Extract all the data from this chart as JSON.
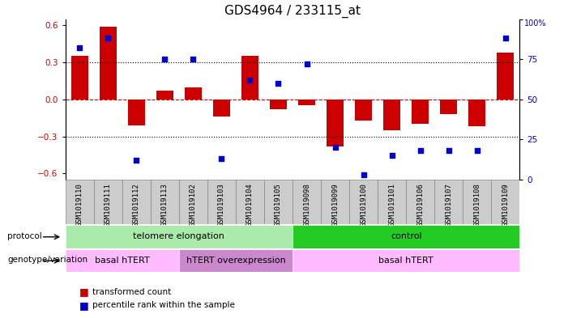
{
  "title": "GDS4964 / 233115_at",
  "samples": [
    "GSM1019110",
    "GSM1019111",
    "GSM1019112",
    "GSM1019113",
    "GSM1019102",
    "GSM1019103",
    "GSM1019104",
    "GSM1019105",
    "GSM1019098",
    "GSM1019099",
    "GSM1019100",
    "GSM1019101",
    "GSM1019106",
    "GSM1019107",
    "GSM1019108",
    "GSM1019109"
  ],
  "bar_values": [
    0.35,
    0.59,
    -0.21,
    0.07,
    0.1,
    -0.14,
    0.35,
    -0.08,
    -0.05,
    -0.38,
    -0.17,
    -0.25,
    -0.2,
    -0.12,
    -0.22,
    0.38
  ],
  "dot_values": [
    82,
    88,
    12,
    75,
    75,
    13,
    62,
    60,
    72,
    20,
    3,
    15,
    18,
    18,
    18,
    88
  ],
  "bar_color": "#cc0000",
  "dot_color": "#0000cc",
  "ylim": [
    -0.65,
    0.65
  ],
  "y2lim": [
    0,
    100
  ],
  "yticks": [
    -0.6,
    -0.3,
    0.0,
    0.3,
    0.6
  ],
  "y2ticks": [
    0,
    25,
    50,
    75,
    100
  ],
  "hline_color": "#cc0000",
  "dotted_color": "black",
  "protocol_labels": [
    {
      "text": "telomere elongation",
      "start": 0,
      "end": 8,
      "color": "#aaeaaa"
    },
    {
      "text": "control",
      "start": 8,
      "end": 16,
      "color": "#22cc22"
    }
  ],
  "genotype_labels": [
    {
      "text": "basal hTERT",
      "start": 0,
      "end": 4,
      "color": "#ffbbff"
    },
    {
      "text": "hTERT overexpression",
      "start": 4,
      "end": 8,
      "color": "#cc88cc"
    },
    {
      "text": "basal hTERT",
      "start": 8,
      "end": 16,
      "color": "#ffbbff"
    }
  ],
  "legend_bar_label": "transformed count",
  "legend_dot_label": "percentile rank within the sample",
  "bg_color": "#ffffff",
  "tick_label_fontsize": 6.5,
  "title_fontsize": 11,
  "sample_box_color": "#cccccc",
  "sample_box_border": "#888888"
}
